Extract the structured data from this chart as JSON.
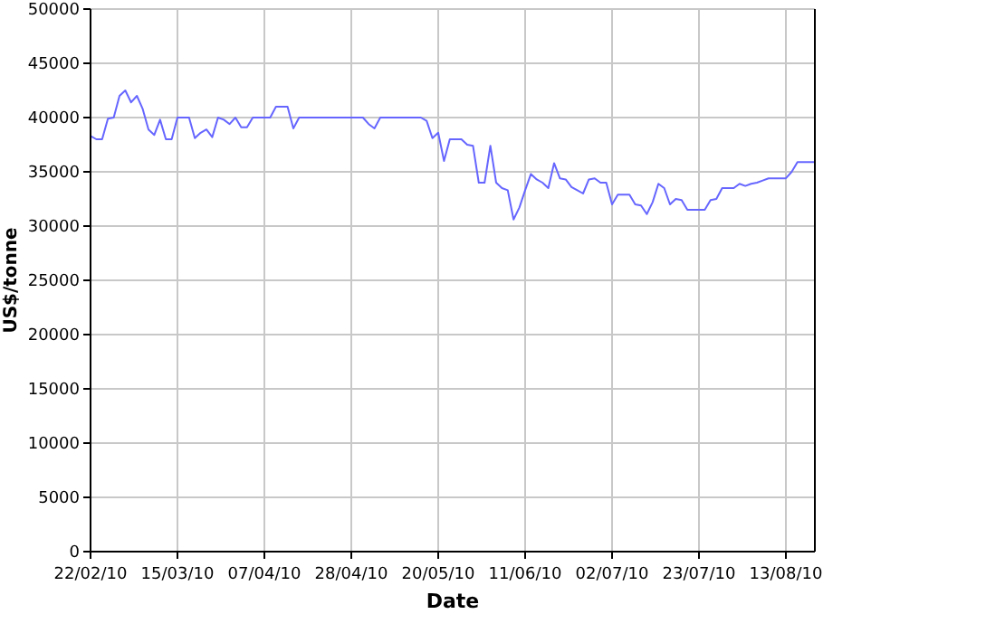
{
  "chart_data": {
    "type": "line",
    "xlabel": "Date",
    "ylabel": "US$/tonne",
    "categories": [
      "22/02/10",
      null,
      null,
      null,
      null,
      null,
      null,
      null,
      null,
      null,
      null,
      null,
      null,
      null,
      null,
      "15/03/10",
      null,
      null,
      null,
      null,
      null,
      null,
      null,
      null,
      null,
      null,
      null,
      null,
      null,
      null,
      "07/04/10",
      null,
      null,
      null,
      null,
      null,
      null,
      null,
      null,
      null,
      null,
      null,
      null,
      null,
      null,
      "28/04/10",
      null,
      null,
      null,
      null,
      null,
      null,
      null,
      null,
      null,
      null,
      null,
      null,
      null,
      null,
      "20/05/10",
      null,
      null,
      null,
      null,
      null,
      null,
      null,
      null,
      null,
      null,
      null,
      null,
      null,
      null,
      "11/06/10",
      null,
      null,
      null,
      null,
      null,
      null,
      null,
      null,
      null,
      null,
      null,
      null,
      null,
      null,
      "02/07/10",
      null,
      null,
      null,
      null,
      null,
      null,
      null,
      null,
      null,
      null,
      null,
      null,
      null,
      null,
      "23/07/10",
      null,
      null,
      null,
      null,
      null,
      null,
      null,
      null,
      null,
      null,
      null,
      null,
      null,
      null,
      "13/08/10",
      null,
      null,
      null,
      null,
      null
    ],
    "series": [
      {
        "color": "#6666ff",
        "values": [
          38300,
          38000,
          38000,
          39900,
          40000,
          42000,
          42500,
          41400,
          42000,
          40800,
          38900,
          38400,
          39800,
          38000,
          38000,
          40000,
          40000,
          40000,
          38100,
          38600,
          38900,
          38200,
          40000,
          39800,
          39400,
          40000,
          39100,
          39100,
          40000,
          40000,
          40000,
          40000,
          41000,
          41000,
          41000,
          39000,
          40000,
          40000,
          40000,
          40000,
          40000,
          40000,
          40000,
          40000,
          40000,
          40000,
          40000,
          40000,
          39400,
          39000,
          40000,
          40000,
          40000,
          40000,
          40000,
          40000,
          40000,
          40000,
          39700,
          38100,
          38600,
          36000,
          38000,
          38000,
          38000,
          37500,
          37400,
          34000,
          34000,
          37400,
          34000,
          33500,
          33300,
          30600,
          31700,
          33300,
          34800,
          34300,
          34000,
          33500,
          35800,
          34400,
          34300,
          33600,
          33300,
          33000,
          34300,
          34400,
          34000,
          34000,
          32000,
          32900,
          32900,
          32900,
          32000,
          31900,
          31100,
          32200,
          33900,
          33500,
          32000,
          32500,
          32400,
          31500,
          31500,
          31500,
          31500,
          32400,
          32500,
          33500,
          33500,
          33500,
          33900,
          33700,
          33900,
          34000,
          34200,
          34400,
          34400,
          34400,
          34400,
          35000,
          35900,
          35900,
          35900,
          35900
        ]
      }
    ],
    "ylim": [
      0,
      50000
    ],
    "yticks": [
      0,
      5000,
      10000,
      15000,
      20000,
      25000,
      30000,
      35000,
      40000,
      45000,
      50000
    ],
    "grid": true,
    "marker": "none",
    "line_style": "solid"
  }
}
